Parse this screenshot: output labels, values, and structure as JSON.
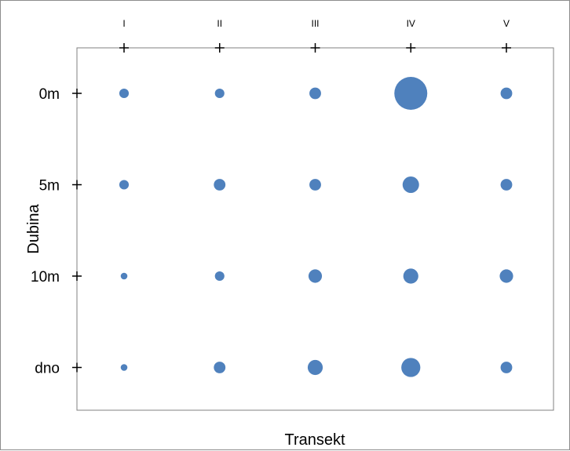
{
  "chart_data": {
    "type": "scatter",
    "title": "",
    "xlabel": "Transekt",
    "ylabel": "Dubina",
    "x_categories": [
      "I",
      "II",
      "III",
      "IV",
      "V"
    ],
    "y_categories": [
      "0m",
      "5m",
      "10m",
      "dno"
    ],
    "x_axis_position": "top",
    "grid": false,
    "legend": "none",
    "marker_color": "#4f81bd",
    "points": [
      {
        "x": "I",
        "y": "0m",
        "size": 2.0
      },
      {
        "x": "II",
        "y": "0m",
        "size": 2.0
      },
      {
        "x": "III",
        "y": "0m",
        "size": 3.0
      },
      {
        "x": "IV",
        "y": "0m",
        "size": 24.0
      },
      {
        "x": "V",
        "y": "0m",
        "size": 3.0
      },
      {
        "x": "I",
        "y": "5m",
        "size": 2.0
      },
      {
        "x": "II",
        "y": "5m",
        "size": 3.0
      },
      {
        "x": "III",
        "y": "5m",
        "size": 3.0
      },
      {
        "x": "IV",
        "y": "5m",
        "size": 6.0
      },
      {
        "x": "V",
        "y": "5m",
        "size": 3.0
      },
      {
        "x": "I",
        "y": "10m",
        "size": 1.0
      },
      {
        "x": "II",
        "y": "10m",
        "size": 2.0
      },
      {
        "x": "III",
        "y": "10m",
        "size": 4.0
      },
      {
        "x": "IV",
        "y": "10m",
        "size": 5.0
      },
      {
        "x": "V",
        "y": "10m",
        "size": 4.0
      },
      {
        "x": "I",
        "y": "dno",
        "size": 1.0
      },
      {
        "x": "II",
        "y": "dno",
        "size": 3.0
      },
      {
        "x": "III",
        "y": "dno",
        "size": 5.0
      },
      {
        "x": "IV",
        "y": "dno",
        "size": 8.0
      },
      {
        "x": "V",
        "y": "dno",
        "size": 3.0
      }
    ]
  }
}
